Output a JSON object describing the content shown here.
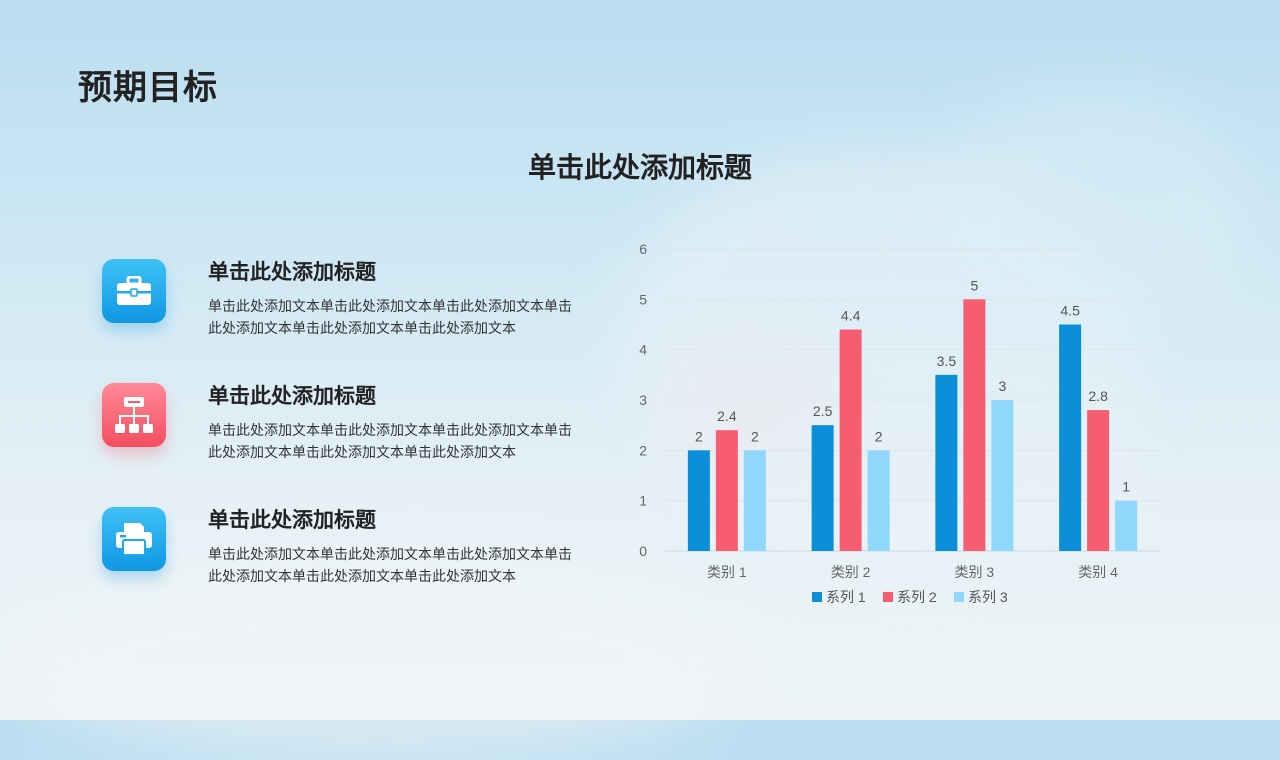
{
  "page": {
    "title": "预期目标"
  },
  "section": {
    "title": "单击此处添加标题"
  },
  "items": [
    {
      "icon": "toolbox-icon",
      "title": "单击此处添加标题",
      "text": "单击此处添加文本单击此处添加文本单击此处添加文本单击此处添加文本单击此处添加文本单击此处添加文本"
    },
    {
      "icon": "org-chart-icon",
      "title": "单击此处添加标题",
      "text": "单击此处添加文本单击此处添加文本单击此处添加文本单击此处添加文本单击此处添加文本单击此处添加文本"
    },
    {
      "icon": "printer-icon",
      "title": "单击此处添加标题",
      "text": "单击此处添加文本单击此处添加文本单击此处添加文本单击此处添加文本单击此处添加文本单击此处添加文本"
    }
  ],
  "colors": {
    "icon_blue": "#1ba9ef",
    "icon_red": "#f65a6b"
  },
  "chart_data": {
    "type": "bar",
    "categories": [
      "类别 1",
      "类别 2",
      "类别 3",
      "类别 4"
    ],
    "series": [
      {
        "name": "系列 1",
        "values": [
          2,
          2.5,
          3.5,
          4.5
        ],
        "color": "#0b8fd8"
      },
      {
        "name": "系列 2",
        "values": [
          2.4,
          4.4,
          5,
          2.8
        ],
        "color": "#f75d71"
      },
      {
        "name": "系列 3",
        "values": [
          2,
          2,
          3,
          1
        ],
        "color": "#8fd8fb"
      }
    ],
    "ylim": [
      0,
      6
    ],
    "yticks": [
      0,
      1,
      2,
      3,
      4,
      5,
      6
    ],
    "grid": true,
    "legend": "bottom",
    "data_labels": true,
    "title": "",
    "xlabel": "",
    "ylabel": ""
  }
}
